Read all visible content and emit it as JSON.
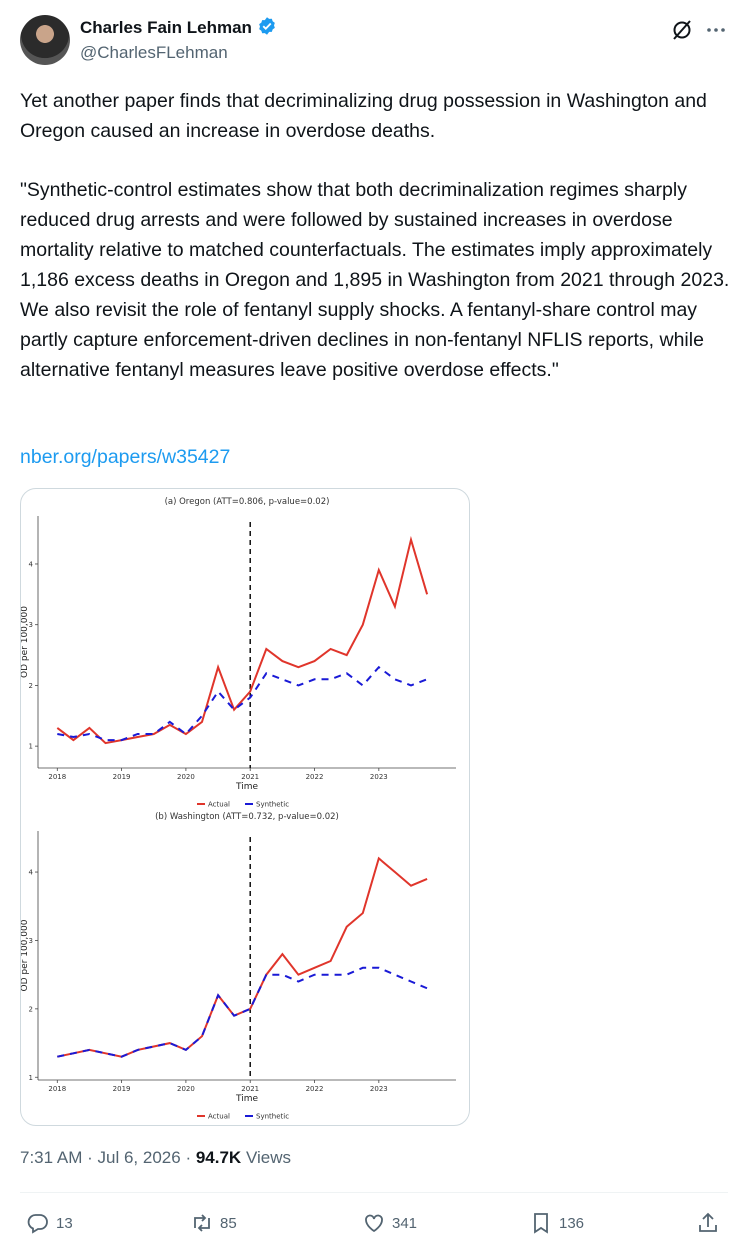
{
  "header": {
    "name": "Charles Fain Lehman",
    "handle": "@CharlesFLehman"
  },
  "tweet": {
    "paragraphs": [
      "Yet another paper finds that decriminalizing drug possession in Washington and Oregon caused an increase in overdose deaths.",
      "\"Synthetic-control estimates show that both decriminalization regimes sharply reduced drug arrests and were followed by sustained increases in overdose mortality relative to matched counterfactuals. The estimates imply approximately 1,186 excess deaths in Oregon and 1,895 in Washington from 2021 through 2023. We also revisit the role of fentanyl supply shocks. A fentanyl-share control may partly capture enforcement-driven declines in non-fentanyl NFLIS reports, while alternative fentanyl measures leave positive overdose effects.\""
    ],
    "link": "nber.org/papers/w35427"
  },
  "media": {
    "charts": [
      {
        "type": "line",
        "title": "(a) Oregon (ATT=0.806, p-value=0.02)",
        "xlabel": "Time",
        "ylabel": "OD per 100,000",
        "x": [
          2018,
          2018.25,
          2018.5,
          2018.75,
          2019,
          2019.25,
          2019.5,
          2019.75,
          2020,
          2020.25,
          2020.5,
          2020.75,
          2021,
          2021.25,
          2021.5,
          2021.75,
          2022,
          2022.25,
          2022.5,
          2022.75,
          2023,
          2023.25,
          2023.5,
          2023.75
        ],
        "series": [
          {
            "name": "Actual",
            "color": "#e0352b",
            "style": "solid",
            "values": [
              1.3,
              1.1,
              1.3,
              1.05,
              1.1,
              1.15,
              1.2,
              1.35,
              1.2,
              1.4,
              2.3,
              1.6,
              1.9,
              2.6,
              2.4,
              2.3,
              2.4,
              2.6,
              2.5,
              3.0,
              3.9,
              3.3,
              4.4,
              3.5
            ]
          },
          {
            "name": "Synthetic",
            "color": "#1a1ad6",
            "style": "dashed",
            "values": [
              1.2,
              1.15,
              1.2,
              1.1,
              1.1,
              1.2,
              1.2,
              1.4,
              1.2,
              1.5,
              1.9,
              1.6,
              1.8,
              2.2,
              2.1,
              2.0,
              2.1,
              2.1,
              2.2,
              2.0,
              2.3,
              2.1,
              2.0,
              2.1
            ]
          }
        ],
        "xlim": [
          2017.7,
          2024.2
        ],
        "xticks": [
          2018,
          2019,
          2020,
          2021,
          2022,
          2023
        ],
        "ylim": [
          0.64,
          4.79
        ],
        "yticks": [
          1,
          2,
          3,
          4
        ],
        "intervention_x": 2021
      },
      {
        "type": "line",
        "title": "(b) Washington (ATT=0.732, p-value=0.02)",
        "xlabel": "Time",
        "ylabel": "OD per 100,000",
        "x": [
          2018,
          2018.25,
          2018.5,
          2018.75,
          2019,
          2019.25,
          2019.5,
          2019.75,
          2020,
          2020.25,
          2020.5,
          2020.75,
          2021,
          2021.25,
          2021.5,
          2021.75,
          2022,
          2022.25,
          2022.5,
          2022.75,
          2023,
          2023.25,
          2023.5,
          2023.75
        ],
        "series": [
          {
            "name": "Actual",
            "color": "#e0352b",
            "style": "solid",
            "values": [
              1.3,
              1.35,
              1.4,
              1.35,
              1.3,
              1.4,
              1.45,
              1.5,
              1.4,
              1.6,
              2.2,
              1.9,
              2.0,
              2.5,
              2.8,
              2.5,
              2.6,
              2.7,
              3.2,
              3.4,
              4.2,
              4.0,
              3.8,
              3.9
            ]
          },
          {
            "name": "Synthetic",
            "color": "#1a1ad6",
            "style": "dashed",
            "values": [
              1.3,
              1.35,
              1.4,
              1.35,
              1.3,
              1.4,
              1.45,
              1.5,
              1.4,
              1.6,
              2.2,
              1.9,
              2.0,
              2.5,
              2.5,
              2.4,
              2.5,
              2.5,
              2.5,
              2.6,
              2.6,
              2.5,
              2.4,
              2.3
            ]
          }
        ],
        "xlim": [
          2017.7,
          2024.2
        ],
        "xticks": [
          2018,
          2019,
          2020,
          2021,
          2022,
          2023
        ],
        "ylim": [
          0.96,
          4.6
        ],
        "yticks": [
          1,
          2,
          3,
          4
        ],
        "intervention_x": 2021
      }
    ]
  },
  "meta": {
    "time": "7:31 AM",
    "separator": "·",
    "date": "Jul 6, 2026",
    "views": "94.7K",
    "views_label": "Views"
  },
  "actions": {
    "replies": 13,
    "reposts": 85,
    "likes": 341,
    "bookmarks": 136
  }
}
